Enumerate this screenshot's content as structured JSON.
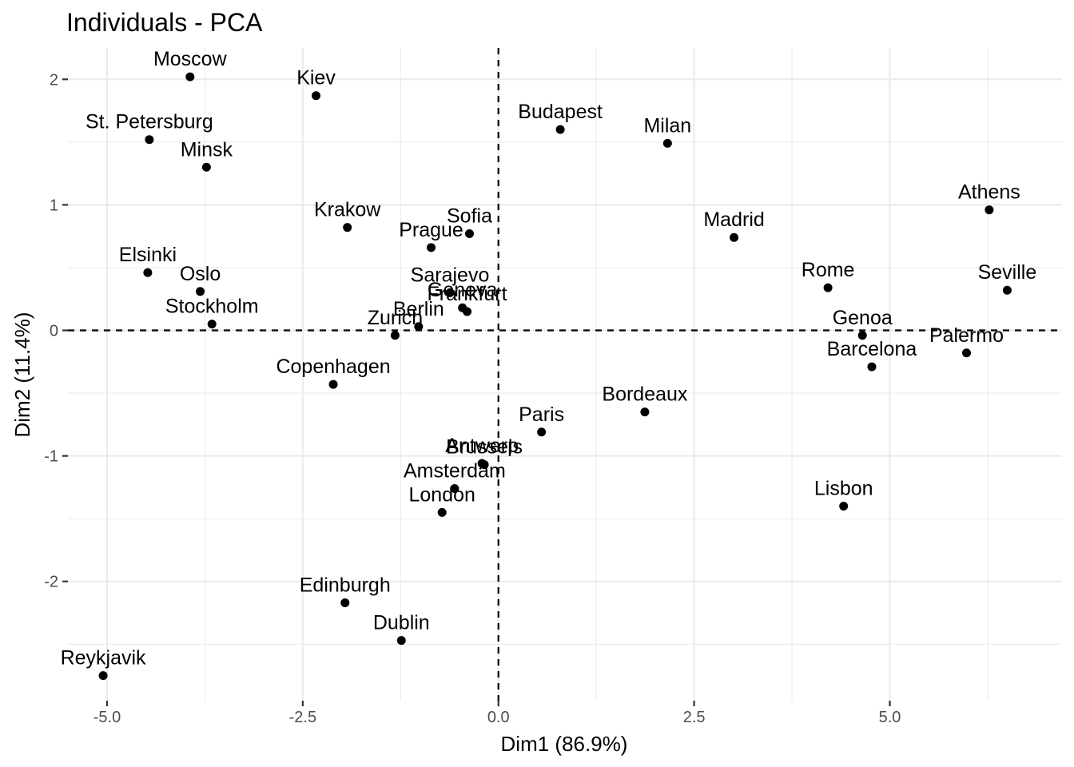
{
  "chart_data": {
    "type": "scatter",
    "title": "Individuals - PCA",
    "xlabel": "Dim1 (86.9%)",
    "ylabel": "Dim2 (11.4%)",
    "xlim": [
      -5.5,
      7.2
    ],
    "ylim": [
      -2.95,
      2.25
    ],
    "x_ticks": [
      -5.0,
      -2.5,
      0.0,
      2.5,
      5.0
    ],
    "x_tick_labels": [
      "-5.0",
      "-2.5",
      "0.0",
      "2.5",
      "5.0"
    ],
    "y_ticks": [
      -2,
      -1,
      0,
      1,
      2
    ],
    "y_tick_labels": [
      "-2",
      "-1",
      "0",
      "1",
      "2"
    ],
    "grid": true,
    "reference_lines": {
      "x": 0,
      "y": 0
    },
    "point_color": "#000000",
    "points": [
      {
        "label": "Moscow",
        "x": -3.94,
        "y": 2.02
      },
      {
        "label": "Kiev",
        "x": -2.33,
        "y": 1.87
      },
      {
        "label": "St. Petersburg",
        "x": -4.46,
        "y": 1.52
      },
      {
        "label": "Minsk",
        "x": -3.73,
        "y": 1.3
      },
      {
        "label": "Budapest",
        "x": 0.79,
        "y": 1.6
      },
      {
        "label": "Milan",
        "x": 2.16,
        "y": 1.49
      },
      {
        "label": "Athens",
        "x": 6.27,
        "y": 0.96
      },
      {
        "label": "Madrid",
        "x": 3.01,
        "y": 0.74
      },
      {
        "label": "Krakow",
        "x": -1.93,
        "y": 0.82
      },
      {
        "label": "Sofia",
        "x": -0.37,
        "y": 0.77
      },
      {
        "label": "Prague",
        "x": -0.86,
        "y": 0.66
      },
      {
        "label": "Elsinki",
        "x": -4.48,
        "y": 0.46
      },
      {
        "label": "Oslo",
        "x": -3.81,
        "y": 0.31
      },
      {
        "label": "Sarajevo",
        "x": -0.62,
        "y": 0.3
      },
      {
        "label": "Geneva",
        "x": -0.46,
        "y": 0.18
      },
      {
        "label": "Frankfurt",
        "x": -0.4,
        "y": 0.15
      },
      {
        "label": "Rome",
        "x": 4.21,
        "y": 0.34
      },
      {
        "label": "Seville",
        "x": 6.5,
        "y": 0.32
      },
      {
        "label": "Stockholm",
        "x": -3.66,
        "y": 0.05
      },
      {
        "label": "Berlin",
        "x": -1.02,
        "y": 0.03
      },
      {
        "label": "Zurich",
        "x": -1.32,
        "y": -0.04
      },
      {
        "label": "Genoa",
        "x": 4.65,
        "y": -0.04
      },
      {
        "label": "Palermo",
        "x": 5.98,
        "y": -0.18
      },
      {
        "label": "Barcelona",
        "x": 4.77,
        "y": -0.29
      },
      {
        "label": "Copenhagen",
        "x": -2.11,
        "y": -0.43
      },
      {
        "label": "Bordeaux",
        "x": 1.87,
        "y": -0.65
      },
      {
        "label": "Paris",
        "x": 0.55,
        "y": -0.81
      },
      {
        "label": "Antwerp",
        "x": -0.21,
        "y": -1.06
      },
      {
        "label": "Brussels",
        "x": -0.18,
        "y": -1.07
      },
      {
        "label": "Amsterdam",
        "x": -0.56,
        "y": -1.26
      },
      {
        "label": "London",
        "x": -0.72,
        "y": -1.45
      },
      {
        "label": "Lisbon",
        "x": 4.41,
        "y": -1.4
      },
      {
        "label": "Edinburgh",
        "x": -1.96,
        "y": -2.17
      },
      {
        "label": "Dublin",
        "x": -1.24,
        "y": -2.47
      },
      {
        "label": "Reykjavik",
        "x": -5.05,
        "y": -2.75
      }
    ]
  }
}
